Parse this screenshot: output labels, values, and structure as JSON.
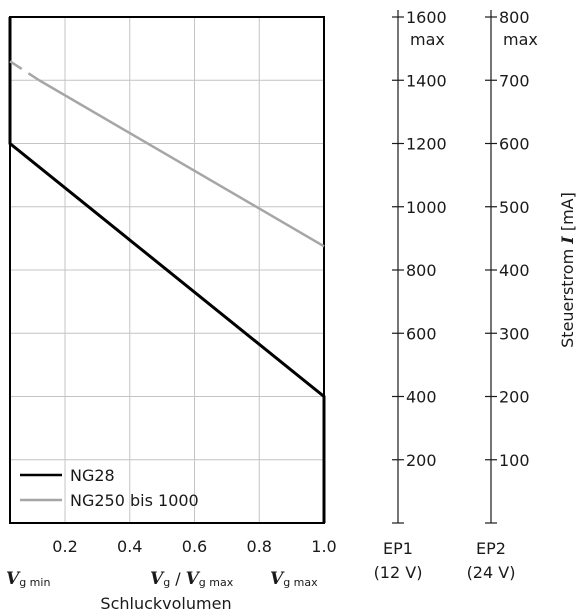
{
  "chart_data": {
    "type": "line",
    "xlim": [
      0.03,
      1.0
    ],
    "ylim": [
      0,
      1600
    ],
    "x_ticks": [
      "0.2",
      "0.4",
      "0.6",
      "0.8",
      "1.0"
    ],
    "x_tick_values": [
      0.2,
      0.4,
      0.6,
      0.8,
      1.0
    ],
    "x_markers": {
      "min_var": "V",
      "min_sub": "g min",
      "ratio_var": "V",
      "ratio_sub": "g",
      "ratio_slash": "/",
      "ratio_den_var": "V",
      "ratio_den_sub": "g max",
      "max_var": "V",
      "max_sub": "g max"
    },
    "xlabel": "Schluckvolumen",
    "ylabel_text": "Steuerstrom ",
    "ylabel_var": "I",
    "ylabel_unit": " [mA]",
    "axes": [
      {
        "name_line1": "EP1",
        "name_line2": "(12 V)",
        "ticks": [
          {
            "value": 200,
            "label": "200"
          },
          {
            "value": 400,
            "label": "400"
          },
          {
            "value": 600,
            "label": "600"
          },
          {
            "value": 800,
            "label": "800"
          },
          {
            "value": 1000,
            "label": "1000"
          },
          {
            "value": 1200,
            "label": "1200"
          },
          {
            "value": 1400,
            "label": "1400"
          },
          {
            "value": 1600,
            "label": "1600",
            "label2": "max"
          }
        ]
      },
      {
        "name_line1": "EP2",
        "name_line2": "(24 V)",
        "ticks": [
          {
            "value": 200,
            "label": "100"
          },
          {
            "value": 400,
            "label": "200"
          },
          {
            "value": 600,
            "label": "300"
          },
          {
            "value": 800,
            "label": "400"
          },
          {
            "value": 1000,
            "label": "500"
          },
          {
            "value": 1200,
            "label": "600"
          },
          {
            "value": 1400,
            "label": "700"
          },
          {
            "value": 1600,
            "label": "800",
            "label2": "max"
          }
        ]
      }
    ],
    "series": [
      {
        "name": "NG28",
        "color": "#000000",
        "points": [
          [
            0.03,
            1600
          ],
          [
            0.03,
            1200
          ],
          [
            1.0,
            400
          ],
          [
            1.0,
            0
          ]
        ]
      },
      {
        "name": "NG250 bis 1000",
        "color": "#a6a6a6",
        "points": [
          [
            0.03,
            1600
          ],
          [
            0.03,
            1200
          ],
          [
            0.03,
            1200
          ]
        ],
        "main_line": [
          [
            0.12,
            1400
          ],
          [
            1.0,
            875
          ]
        ],
        "dashed_line": [
          [
            0.03,
            1460
          ],
          [
            0.12,
            1400
          ]
        ]
      }
    ],
    "grid": true,
    "legend_position": "bottom-left"
  }
}
